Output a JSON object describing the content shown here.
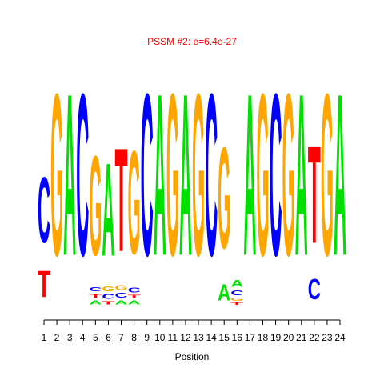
{
  "chart_data": {
    "type": "logo",
    "title": "PSSM #2: e=6.4e-27",
    "x_label": "Position",
    "categories": [
      1,
      2,
      3,
      4,
      5,
      6,
      7,
      8,
      9,
      10,
      11,
      12,
      13,
      14,
      15,
      16,
      17,
      18,
      19,
      20,
      21,
      22,
      23,
      24
    ],
    "ylim": [
      0,
      2
    ],
    "colors": {
      "A": "#00e000",
      "C": "#0000ff",
      "G": "#ffa500",
      "T": "#ff0000"
    },
    "title_color": "#ff0000",
    "stacks": [
      [
        {
          "letter": "T",
          "height": 0.33
        },
        {
          "letter": "C",
          "height": 0.81
        }
      ],
      [
        {
          "letter": "G",
          "height": 2.0
        }
      ],
      [
        {
          "letter": "A",
          "height": 2.0
        }
      ],
      [
        {
          "letter": "C",
          "height": 2.0
        }
      ],
      [
        {
          "letter": "A",
          "height": 0.05
        },
        {
          "letter": "T",
          "height": 0.05
        },
        {
          "letter": "C",
          "height": 0.05
        },
        {
          "letter": "G",
          "height": 1.23
        }
      ],
      [
        {
          "letter": "T",
          "height": 0.04
        },
        {
          "letter": "C",
          "height": 0.06
        },
        {
          "letter": "G",
          "height": 0.06
        },
        {
          "letter": "A",
          "height": 1.15
        }
      ],
      [
        {
          "letter": "A",
          "height": 0.05
        },
        {
          "letter": "C",
          "height": 0.06
        },
        {
          "letter": "G",
          "height": 0.06
        },
        {
          "letter": "T",
          "height": 1.28
        }
      ],
      [
        {
          "letter": "A",
          "height": 0.05
        },
        {
          "letter": "T",
          "height": 0.04
        },
        {
          "letter": "C",
          "height": 0.06
        },
        {
          "letter": "G",
          "height": 1.28
        }
      ],
      [
        {
          "letter": "C",
          "height": 2.0
        }
      ],
      [
        {
          "letter": "A",
          "height": 2.0
        }
      ],
      [
        {
          "letter": "G",
          "height": 2.0
        }
      ],
      [
        {
          "letter": "A",
          "height": 2.0
        }
      ],
      [
        {
          "letter": "G",
          "height": 2.0
        }
      ],
      [
        {
          "letter": "C",
          "height": 2.0
        }
      ],
      [
        {
          "letter": "A",
          "height": 0.2
        },
        {
          "letter": "G",
          "height": 1.25
        }
      ],
      [
        {
          "letter": "T",
          "height": 0.03
        },
        {
          "letter": "G",
          "height": 0.04
        },
        {
          "letter": "C",
          "height": 0.06
        },
        {
          "letter": "A",
          "height": 0.08
        }
      ],
      [
        {
          "letter": "A",
          "height": 2.0
        }
      ],
      [
        {
          "letter": "G",
          "height": 2.0
        }
      ],
      [
        {
          "letter": "C",
          "height": 2.0
        }
      ],
      [
        {
          "letter": "G",
          "height": 2.0
        }
      ],
      [
        {
          "letter": "A",
          "height": 2.0
        }
      ],
      [
        {
          "letter": "C",
          "height": 0.25
        },
        {
          "letter": "T",
          "height": 1.2
        }
      ],
      [
        {
          "letter": "G",
          "height": 2.0
        }
      ],
      [
        {
          "letter": "A",
          "height": 2.0
        }
      ]
    ]
  }
}
